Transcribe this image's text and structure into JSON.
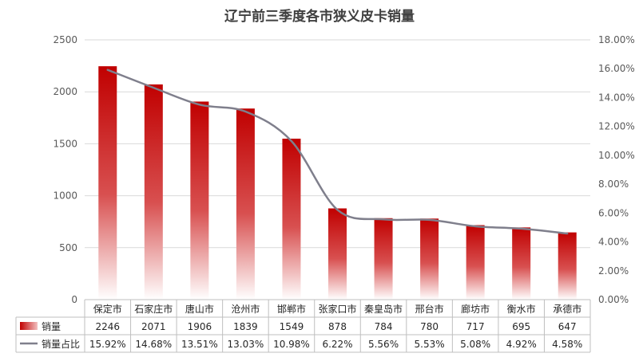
{
  "chart_data": {
    "type": "bar",
    "title": "辽宁前三季度各市狭义皮卡销量",
    "categories": [
      "保定市",
      "石家庄市",
      "唐山市",
      "沧州市",
      "邯郸市",
      "张家口市",
      "秦皇岛市",
      "邢台市",
      "廊坊市",
      "衡水市",
      "承德市"
    ],
    "series": [
      {
        "name": "销量",
        "type": "bar",
        "axis": "left",
        "values": [
          2246,
          2071,
          1906,
          1839,
          1549,
          878,
          784,
          780,
          717,
          695,
          647
        ],
        "labels": [
          "2246",
          "2071",
          "1906",
          "1839",
          "1549",
          "878",
          "784",
          "780",
          "717",
          "695",
          "647"
        ],
        "color": "#c00000"
      },
      {
        "name": "销量占比",
        "type": "line",
        "axis": "right",
        "values": [
          15.92,
          14.68,
          13.51,
          13.03,
          10.98,
          6.22,
          5.56,
          5.53,
          5.08,
          4.92,
          4.58
        ],
        "labels": [
          "15.92%",
          "14.68%",
          "13.51%",
          "13.03%",
          "10.98%",
          "6.22%",
          "5.56%",
          "5.53%",
          "5.08%",
          "4.92%",
          "4.58%"
        ],
        "color": "#7f7f8c"
      }
    ],
    "y_left": {
      "min": 0,
      "max": 2500,
      "ticks": [
        "0",
        "500",
        "1000",
        "1500",
        "2000",
        "2500"
      ]
    },
    "y_right": {
      "min": 0,
      "max": 18,
      "ticks": [
        "0.00%",
        "2.00%",
        "4.00%",
        "6.00%",
        "8.00%",
        "10.00%",
        "12.00%",
        "14.00%",
        "16.00%",
        "18.00%"
      ]
    },
    "grid": true,
    "legend": "data-table-below"
  }
}
